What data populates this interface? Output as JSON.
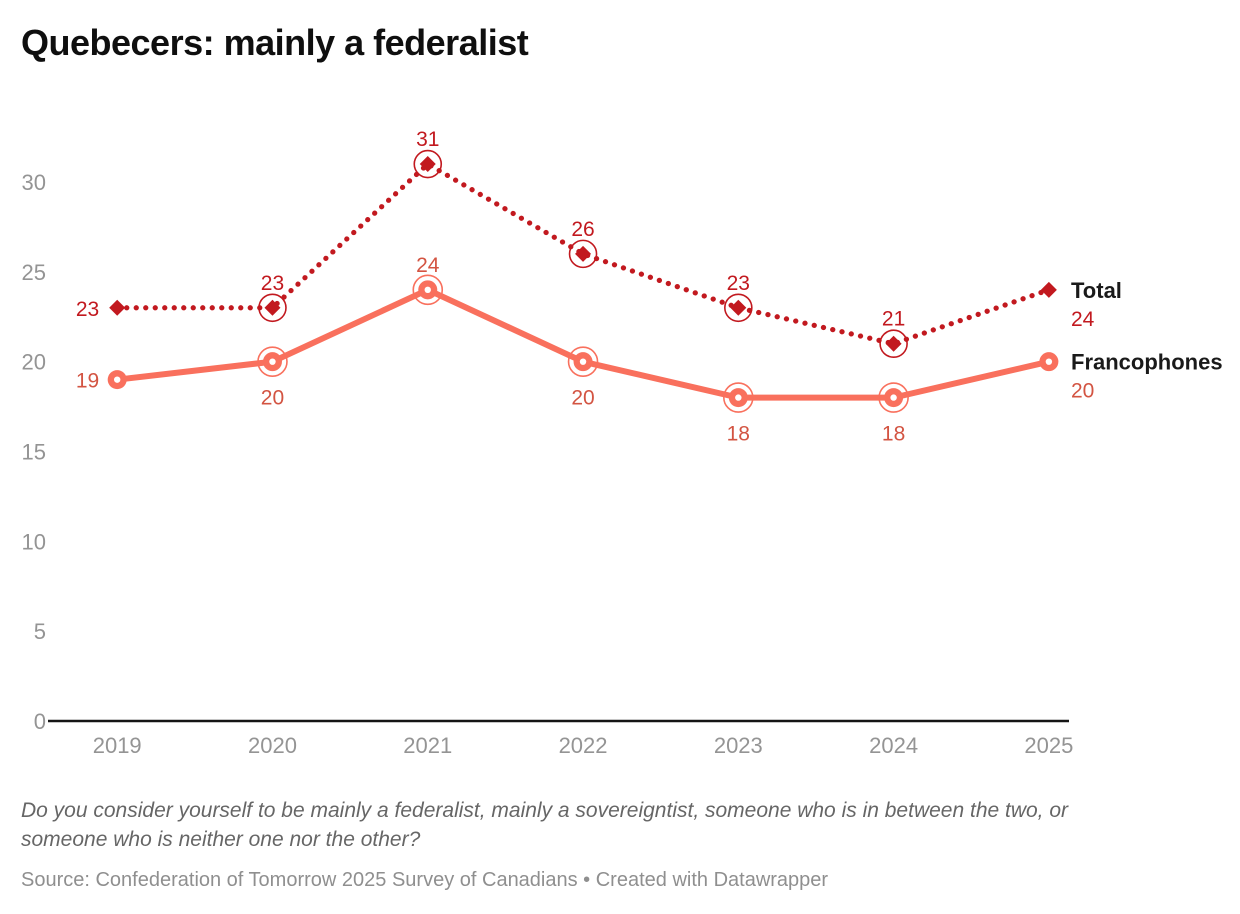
{
  "header": {
    "title": "Quebecers: mainly a federalist"
  },
  "chart_data": {
    "type": "line",
    "title": "Quebecers: mainly a federalist",
    "x": [
      "2019",
      "2020",
      "2021",
      "2022",
      "2023",
      "2024",
      "2025"
    ],
    "series": [
      {
        "name": "Total",
        "values": [
          23,
          23,
          31,
          26,
          23,
          21,
          24
        ],
        "color": "#c2191f",
        "label_color": "#c2191f",
        "line_style": "dotted",
        "marker": "diamond",
        "end_value": 24,
        "label_placements": [
          "left",
          "above",
          "above",
          "above",
          "above",
          "above",
          "legend"
        ]
      },
      {
        "name": "Francophones",
        "values": [
          19,
          20,
          24,
          20,
          18,
          18,
          20
        ],
        "color": "#f9705d",
        "label_color": "#d35442",
        "line_style": "solid",
        "marker": "circle-dot",
        "end_value": 20,
        "label_placements": [
          "left",
          "below",
          "above",
          "below",
          "below",
          "below",
          "legend"
        ]
      }
    ],
    "ylim": [
      0,
      32.4
    ],
    "yticks": [
      0,
      5,
      10,
      15,
      20,
      25,
      30
    ],
    "grid": false,
    "legend_position": "right-inline",
    "axis_color": "#151515",
    "tick_label_color": "#949494",
    "legend_name_color": "#1a1a1a"
  },
  "footer": {
    "question": "Do you consider yourself to be mainly a federalist, mainly a sovereigntist, someone who is in between the two, or someone who is neither one nor the other?",
    "source": "Source: Confederation of Tomorrow 2025 Survey of Canadians • Created with Datawrapper"
  }
}
